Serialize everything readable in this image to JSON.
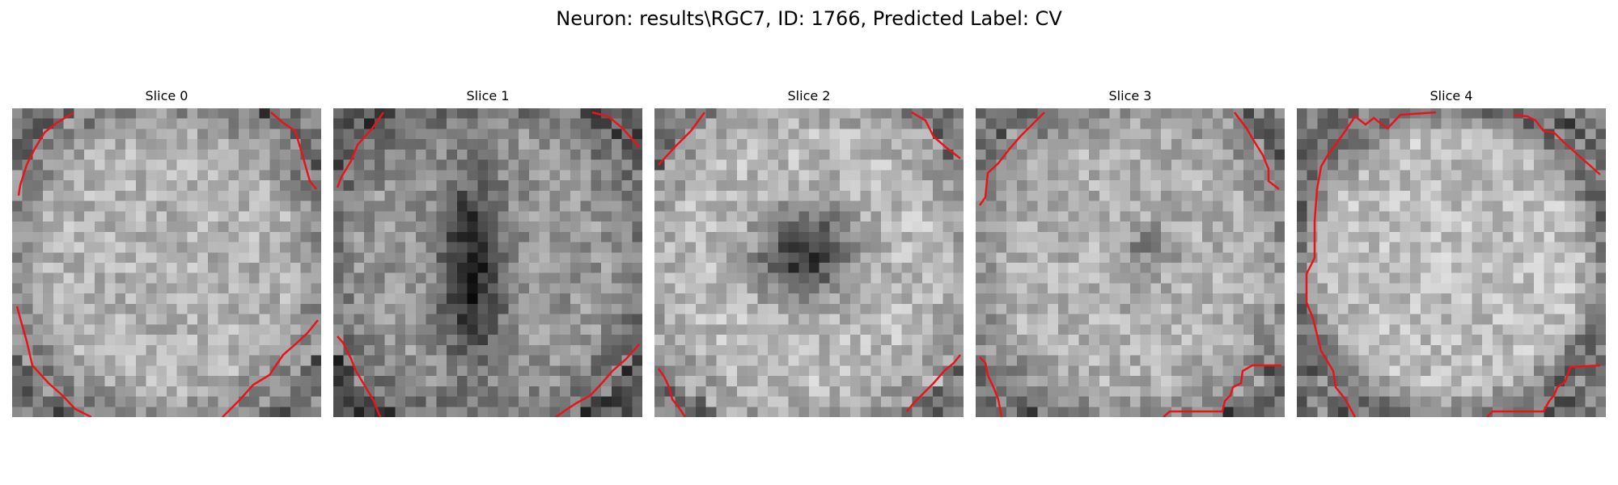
{
  "figure": {
    "title": "Neuron: results\\RGC7, ID: 1766, Predicted Label: CV"
  },
  "colors": {
    "contour": "#e8141c",
    "background": "#ffffff"
  },
  "panels": [
    {
      "title": "Slice 0"
    },
    {
      "title": "Slice 1"
    },
    {
      "title": "Slice 2"
    },
    {
      "title": "Slice 3"
    },
    {
      "title": "Slice 4"
    }
  ]
}
